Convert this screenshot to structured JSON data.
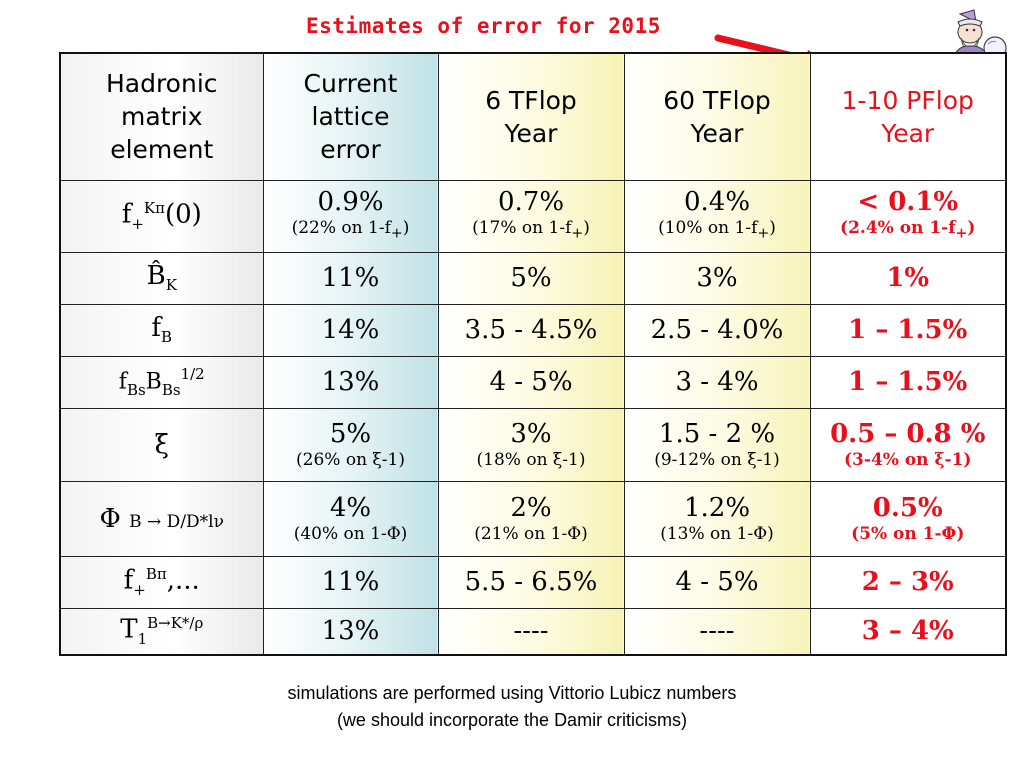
{
  "title": "Estimates of error for 2015",
  "colors": {
    "accent_red": "#e8101c",
    "column1_tint": "#bfe2e6",
    "column2_tint": "#f6f2b4"
  },
  "clipart": "wizard-gazing-crystal-ball-icon",
  "headers": [
    [
      "Hadronic",
      "matrix",
      "element"
    ],
    [
      "Current",
      "lattice",
      "error"
    ],
    [
      "6 TFlop",
      "Year"
    ],
    [
      "60 TFlop",
      "Year"
    ],
    [
      "1-10 PFlop",
      "Year"
    ]
  ],
  "rows": [
    {
      "element": {
        "base": "f",
        "sub": "+",
        "sup": "Kπ",
        "tail": "(0)"
      },
      "cells": [
        {
          "main": "0.9%",
          "sub": "(22% on 1-f",
          "sub_sub": "+",
          "sub_tail": ")"
        },
        {
          "main": "0.7%",
          "sub": "(17% on 1-f",
          "sub_sub": "+",
          "sub_tail": ")"
        },
        {
          "main": "0.4%",
          "sub": "(10% on 1-f",
          "sub_sub": "+",
          "sub_tail": ")"
        },
        {
          "main": "< 0.1%",
          "sub": "(2.4% on 1-f",
          "sub_sub": "+",
          "sub_tail": ")"
        }
      ]
    },
    {
      "element": {
        "base": "B̂",
        "sub": "K"
      },
      "cells": [
        {
          "main": "11%"
        },
        {
          "main": "5%"
        },
        {
          "main": "3%"
        },
        {
          "main": "1%"
        }
      ]
    },
    {
      "element": {
        "base": "f",
        "sub": "B"
      },
      "cells": [
        {
          "main": "14%"
        },
        {
          "main": "3.5 - 4.5%"
        },
        {
          "main": "2.5 - 4.0%"
        },
        {
          "main": "1 – 1.5%"
        }
      ]
    },
    {
      "element": {
        "base": "f",
        "sub": "Bs",
        "base2": "B",
        "sub2": "Bs",
        "sup2": "1/2"
      },
      "cells": [
        {
          "main": "13%"
        },
        {
          "main": "4 - 5%"
        },
        {
          "main": "3 - 4%"
        },
        {
          "main": "1 – 1.5%"
        }
      ]
    },
    {
      "element": {
        "base": "ξ"
      },
      "cells": [
        {
          "main": "5%",
          "sub": "(26% on ξ-1)"
        },
        {
          "main": "3%",
          "sub": "(18% on ξ-1)"
        },
        {
          "main": "1.5 - 2 %",
          "sub": "(9-12% on ξ-1)"
        },
        {
          "main": "0.5 – 0.8 %",
          "sub": "(3-4% on ξ-1)"
        }
      ]
    },
    {
      "element": {
        "base": "Φ",
        "small": "B → D/D*lν"
      },
      "cells": [
        {
          "main": "4%",
          "sub": "(40% on 1-Φ)"
        },
        {
          "main": "2%",
          "sub": "(21% on 1-Φ)"
        },
        {
          "main": "1.2%",
          "sub": "(13% on 1-Φ)"
        },
        {
          "main": "0.5%",
          "sub": "(5% on 1-Φ)"
        }
      ]
    },
    {
      "element": {
        "base": "f",
        "sub": "+",
        "sup": "Bπ",
        "tail": ",..."
      },
      "cells": [
        {
          "main": "11%"
        },
        {
          "main": "5.5 - 6.5%"
        },
        {
          "main": "4 - 5%"
        },
        {
          "main": "2 – 3%"
        }
      ]
    },
    {
      "element": {
        "base": "T",
        "sub": "1",
        "sup": "B→K*/ρ"
      },
      "cells": [
        {
          "main": "13%"
        },
        {
          "main": "----"
        },
        {
          "main": "----"
        },
        {
          "main": "3 – 4%"
        }
      ]
    }
  ],
  "notes": [
    "simulations are performed using Vittorio Lubicz numbers",
    "(we should incorporate the Damir criticisms)"
  ]
}
